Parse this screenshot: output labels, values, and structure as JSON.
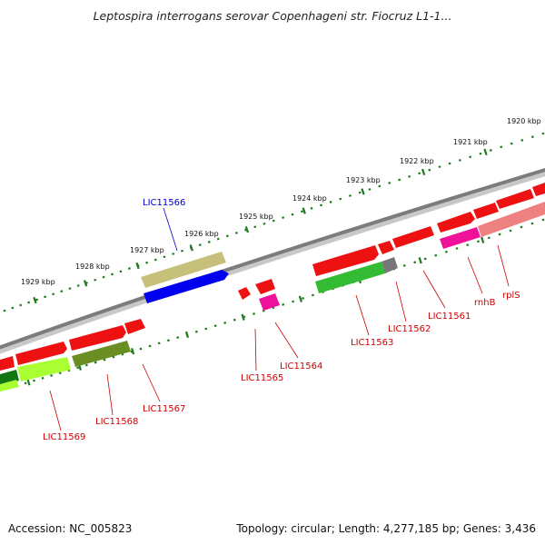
{
  "title": "Leptospira interrogans serovar Copenhageni str. Fiocruz L1-1...",
  "footer": {
    "accession": "Accession: NC_005823",
    "topology": "Topology: circular; Length: 4,277,185 bp; Genes: 3,436"
  },
  "colors": {
    "backbone": "#8a8a8a",
    "tick": "#1e7a1e",
    "label_red": "#cc0000",
    "label_blue": "#0000cc"
  },
  "ticks": [
    {
      "label": "1920 kbp"
    },
    {
      "label": "1921 kbp"
    },
    {
      "label": "1922 kbp"
    },
    {
      "label": "1923 kbp"
    },
    {
      "label": "1924 kbp"
    },
    {
      "label": "1925 kbp"
    },
    {
      "label": "1926 kbp"
    },
    {
      "label": "1927 kbp"
    },
    {
      "label": "1928 kbp"
    },
    {
      "label": "1929 kbp"
    }
  ],
  "gene_labels": [
    {
      "text": "LIC11566",
      "color": "#0000cc"
    },
    {
      "text": "LIC11565",
      "color": "#cc0000"
    },
    {
      "text": "LIC11564",
      "color": "#cc0000"
    },
    {
      "text": "LIC11563",
      "color": "#cc0000"
    },
    {
      "text": "LIC11562",
      "color": "#cc0000"
    },
    {
      "text": "LIC11561",
      "color": "#cc0000"
    },
    {
      "text": "rnhB",
      "color": "#cc0000"
    },
    {
      "text": "rplS",
      "color": "#cc0000"
    },
    {
      "text": "LIC11567",
      "color": "#cc0000"
    },
    {
      "text": "LIC11568",
      "color": "#cc0000"
    },
    {
      "text": "LIC11569",
      "color": "#cc0000"
    }
  ]
}
